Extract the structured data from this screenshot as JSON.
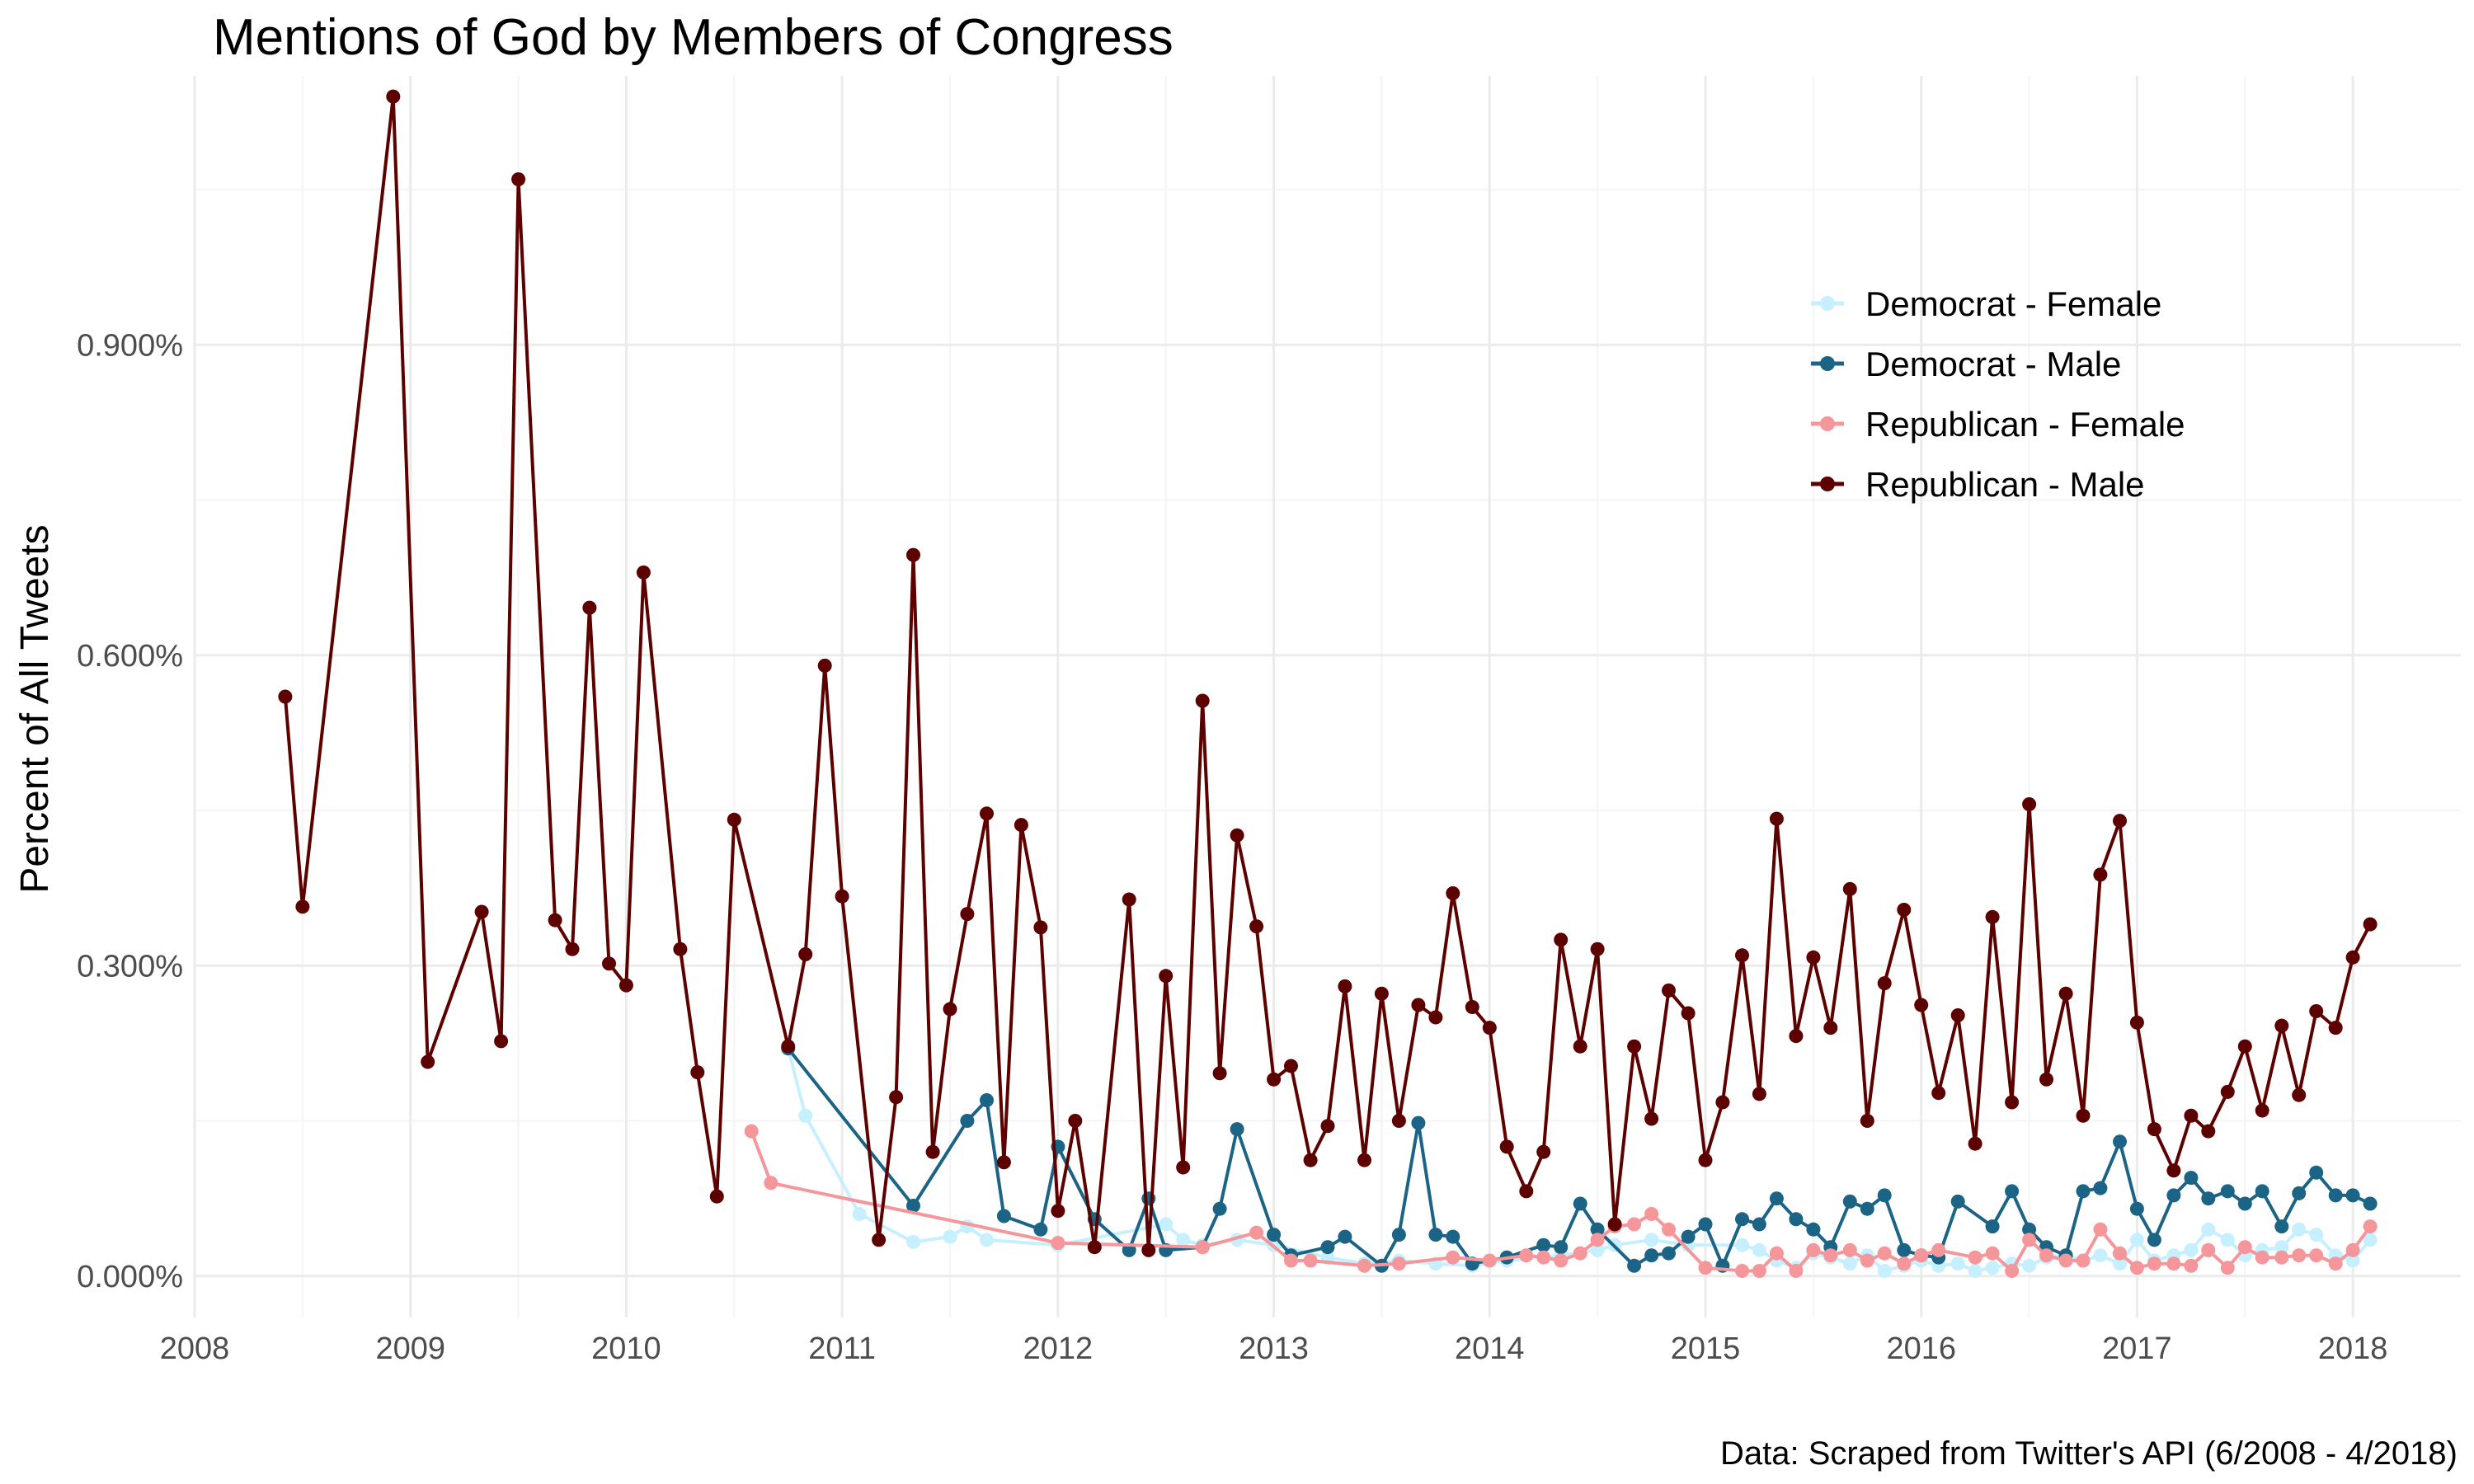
{
  "chart_data": {
    "type": "line",
    "title": "Mentions of God by Members of Congress",
    "caption": "Data: Scraped from Twitter's API (6/2008 - 4/2018)",
    "ylabel": "Percent of All Tweets",
    "xlabel": "",
    "xlim": [
      2008.0,
      2018.5
    ],
    "ylim": [
      -0.04,
      1.16
    ],
    "x_ticks": [
      2008,
      2009,
      2010,
      2011,
      2012,
      2013,
      2014,
      2015,
      2016,
      2017,
      2018
    ],
    "x_tick_labels": [
      "2008",
      "2009",
      "2010",
      "2011",
      "2012",
      "2013",
      "2014",
      "2015",
      "2016",
      "2017",
      "2018"
    ],
    "y_ticks": [
      0.0,
      0.3,
      0.6,
      0.9
    ],
    "y_tick_labels": [
      "0.000%",
      "0.300%",
      "0.600%",
      "0.900%"
    ],
    "grid": true,
    "legend_position": "top-right",
    "series": [
      {
        "name": "Democrat - Female",
        "color": "#c6efff",
        "points": [
          [
            2010.75,
            0.22
          ],
          [
            2010.83,
            0.155
          ],
          [
            2011.08,
            0.06
          ],
          [
            2011.33,
            0.033
          ],
          [
            2011.5,
            0.038
          ],
          [
            2011.58,
            0.048
          ],
          [
            2011.67,
            0.035
          ],
          [
            2012.0,
            0.03
          ],
          [
            2012.5,
            0.05
          ],
          [
            2012.58,
            0.035
          ],
          [
            2012.67,
            0.03
          ],
          [
            2012.83,
            0.035
          ],
          [
            2013.0,
            0.03
          ],
          [
            2013.25,
            0.018
          ],
          [
            2013.42,
            0.012
          ],
          [
            2013.58,
            0.015
          ],
          [
            2013.75,
            0.012
          ],
          [
            2013.92,
            0.01
          ],
          [
            2014.08,
            0.015
          ],
          [
            2014.33,
            0.02
          ],
          [
            2014.5,
            0.025
          ],
          [
            2014.58,
            0.03
          ],
          [
            2014.75,
            0.035
          ],
          [
            2014.92,
            0.03
          ],
          [
            2015.17,
            0.03
          ],
          [
            2015.25,
            0.025
          ],
          [
            2015.33,
            0.015
          ],
          [
            2015.42,
            0.008
          ],
          [
            2015.5,
            0.022
          ],
          [
            2015.58,
            0.018
          ],
          [
            2015.67,
            0.012
          ],
          [
            2015.75,
            0.02
          ],
          [
            2015.83,
            0.005
          ],
          [
            2015.92,
            0.01
          ],
          [
            2016.0,
            0.015
          ],
          [
            2016.08,
            0.01
          ],
          [
            2016.17,
            0.012
          ],
          [
            2016.25,
            0.005
          ],
          [
            2016.33,
            0.008
          ],
          [
            2016.42,
            0.012
          ],
          [
            2016.5,
            0.01
          ],
          [
            2016.58,
            0.018
          ],
          [
            2016.67,
            0.02
          ],
          [
            2016.75,
            0.015
          ],
          [
            2016.83,
            0.02
          ],
          [
            2016.92,
            0.012
          ],
          [
            2017.0,
            0.035
          ],
          [
            2017.08,
            0.015
          ],
          [
            2017.17,
            0.02
          ],
          [
            2017.25,
            0.025
          ],
          [
            2017.33,
            0.045
          ],
          [
            2017.42,
            0.035
          ],
          [
            2017.5,
            0.02
          ],
          [
            2017.58,
            0.025
          ],
          [
            2017.67,
            0.028
          ],
          [
            2017.75,
            0.045
          ],
          [
            2017.83,
            0.04
          ],
          [
            2017.92,
            0.02
          ],
          [
            2018.0,
            0.015
          ],
          [
            2018.08,
            0.035
          ]
        ]
      },
      {
        "name": "Democrat - Male",
        "color": "#1c6485",
        "points": [
          [
            2010.75,
            0.22
          ],
          [
            2011.33,
            0.068
          ],
          [
            2011.58,
            0.15
          ],
          [
            2011.67,
            0.17
          ],
          [
            2011.75,
            0.058
          ],
          [
            2011.92,
            0.045
          ],
          [
            2012.0,
            0.125
          ],
          [
            2012.17,
            0.055
          ],
          [
            2012.33,
            0.025
          ],
          [
            2012.42,
            0.075
          ],
          [
            2012.5,
            0.025
          ],
          [
            2012.67,
            0.028
          ],
          [
            2012.75,
            0.065
          ],
          [
            2012.83,
            0.142
          ],
          [
            2013.0,
            0.04
          ],
          [
            2013.08,
            0.02
          ],
          [
            2013.25,
            0.028
          ],
          [
            2013.33,
            0.038
          ],
          [
            2013.5,
            0.01
          ],
          [
            2013.58,
            0.04
          ],
          [
            2013.67,
            0.148
          ],
          [
            2013.75,
            0.04
          ],
          [
            2013.83,
            0.038
          ],
          [
            2013.92,
            0.012
          ],
          [
            2014.08,
            0.018
          ],
          [
            2014.25,
            0.03
          ],
          [
            2014.33,
            0.028
          ],
          [
            2014.42,
            0.07
          ],
          [
            2014.5,
            0.045
          ],
          [
            2014.67,
            0.01
          ],
          [
            2014.75,
            0.02
          ],
          [
            2014.83,
            0.022
          ],
          [
            2014.92,
            0.038
          ],
          [
            2015.0,
            0.05
          ],
          [
            2015.08,
            0.01
          ],
          [
            2015.17,
            0.055
          ],
          [
            2015.25,
            0.05
          ],
          [
            2015.33,
            0.075
          ],
          [
            2015.42,
            0.055
          ],
          [
            2015.5,
            0.045
          ],
          [
            2015.58,
            0.028
          ],
          [
            2015.67,
            0.072
          ],
          [
            2015.75,
            0.065
          ],
          [
            2015.83,
            0.078
          ],
          [
            2015.92,
            0.025
          ],
          [
            2016.0,
            0.02
          ],
          [
            2016.08,
            0.018
          ],
          [
            2016.17,
            0.072
          ],
          [
            2016.33,
            0.048
          ],
          [
            2016.42,
            0.082
          ],
          [
            2016.5,
            0.045
          ],
          [
            2016.58,
            0.028
          ],
          [
            2016.67,
            0.02
          ],
          [
            2016.75,
            0.082
          ],
          [
            2016.83,
            0.085
          ],
          [
            2016.92,
            0.13
          ],
          [
            2017.0,
            0.065
          ],
          [
            2017.08,
            0.035
          ],
          [
            2017.17,
            0.078
          ],
          [
            2017.25,
            0.095
          ],
          [
            2017.33,
            0.075
          ],
          [
            2017.42,
            0.082
          ],
          [
            2017.5,
            0.07
          ],
          [
            2017.58,
            0.082
          ],
          [
            2017.67,
            0.048
          ],
          [
            2017.75,
            0.08
          ],
          [
            2017.83,
            0.1
          ],
          [
            2017.92,
            0.078
          ],
          [
            2018.0,
            0.078
          ],
          [
            2018.08,
            0.07
          ]
        ]
      },
      {
        "name": "Republican - Female",
        "color": "#f4969a",
        "points": [
          [
            2010.58,
            0.14
          ],
          [
            2010.67,
            0.09
          ],
          [
            2012.0,
            0.032
          ],
          [
            2012.67,
            0.028
          ],
          [
            2012.92,
            0.042
          ],
          [
            2013.08,
            0.015
          ],
          [
            2013.17,
            0.015
          ],
          [
            2013.42,
            0.01
          ],
          [
            2013.58,
            0.012
          ],
          [
            2013.83,
            0.018
          ],
          [
            2014.0,
            0.015
          ],
          [
            2014.17,
            0.02
          ],
          [
            2014.25,
            0.018
          ],
          [
            2014.33,
            0.015
          ],
          [
            2014.42,
            0.022
          ],
          [
            2014.5,
            0.035
          ],
          [
            2014.58,
            0.048
          ],
          [
            2014.67,
            0.05
          ],
          [
            2014.75,
            0.06
          ],
          [
            2014.83,
            0.045
          ],
          [
            2015.0,
            0.008
          ],
          [
            2015.17,
            0.005
          ],
          [
            2015.25,
            0.005
          ],
          [
            2015.33,
            0.022
          ],
          [
            2015.42,
            0.005
          ],
          [
            2015.5,
            0.025
          ],
          [
            2015.58,
            0.02
          ],
          [
            2015.67,
            0.025
          ],
          [
            2015.75,
            0.015
          ],
          [
            2015.83,
            0.022
          ],
          [
            2015.92,
            0.012
          ],
          [
            2016.0,
            0.02
          ],
          [
            2016.08,
            0.025
          ],
          [
            2016.25,
            0.018
          ],
          [
            2016.33,
            0.022
          ],
          [
            2016.42,
            0.005
          ],
          [
            2016.5,
            0.035
          ],
          [
            2016.58,
            0.02
          ],
          [
            2016.67,
            0.015
          ],
          [
            2016.75,
            0.015
          ],
          [
            2016.83,
            0.045
          ],
          [
            2016.92,
            0.022
          ],
          [
            2017.0,
            0.008
          ],
          [
            2017.08,
            0.012
          ],
          [
            2017.17,
            0.012
          ],
          [
            2017.25,
            0.01
          ],
          [
            2017.33,
            0.025
          ],
          [
            2017.42,
            0.008
          ],
          [
            2017.5,
            0.028
          ],
          [
            2017.58,
            0.018
          ],
          [
            2017.67,
            0.018
          ],
          [
            2017.75,
            0.02
          ],
          [
            2017.83,
            0.02
          ],
          [
            2017.92,
            0.012
          ],
          [
            2018.0,
            0.025
          ],
          [
            2018.08,
            0.048
          ]
        ]
      },
      {
        "name": "Republican - Male",
        "color": "#5c0000",
        "points": [
          [
            2008.42,
            0.56
          ],
          [
            2008.5,
            0.357
          ],
          [
            2008.92,
            1.14
          ],
          [
            2009.08,
            0.207
          ],
          [
            2009.33,
            0.352
          ],
          [
            2009.42,
            0.227
          ],
          [
            2009.5,
            1.06
          ],
          [
            2009.67,
            0.344
          ],
          [
            2009.75,
            0.316
          ],
          [
            2009.83,
            0.646
          ],
          [
            2009.92,
            0.302
          ],
          [
            2010.0,
            0.281
          ],
          [
            2010.08,
            0.68
          ],
          [
            2010.25,
            0.316
          ],
          [
            2010.33,
            0.197
          ],
          [
            2010.42,
            0.077
          ],
          [
            2010.5,
            0.441
          ],
          [
            2010.75,
            0.222
          ],
          [
            2010.83,
            0.311
          ],
          [
            2010.92,
            0.59
          ],
          [
            2011.0,
            0.367
          ],
          [
            2011.17,
            0.035
          ],
          [
            2011.25,
            0.173
          ],
          [
            2011.33,
            0.697
          ],
          [
            2011.42,
            0.12
          ],
          [
            2011.5,
            0.258
          ],
          [
            2011.58,
            0.35
          ],
          [
            2011.67,
            0.447
          ],
          [
            2011.75,
            0.11
          ],
          [
            2011.83,
            0.436
          ],
          [
            2011.92,
            0.337
          ],
          [
            2012.0,
            0.063
          ],
          [
            2012.08,
            0.15
          ],
          [
            2012.17,
            0.028
          ],
          [
            2012.33,
            0.364
          ],
          [
            2012.42,
            0.025
          ],
          [
            2012.5,
            0.29
          ],
          [
            2012.58,
            0.105
          ],
          [
            2012.67,
            0.556
          ],
          [
            2012.75,
            0.196
          ],
          [
            2012.83,
            0.426
          ],
          [
            2012.92,
            0.338
          ],
          [
            2013.0,
            0.19
          ],
          [
            2013.08,
            0.203
          ],
          [
            2013.17,
            0.112
          ],
          [
            2013.25,
            0.145
          ],
          [
            2013.33,
            0.28
          ],
          [
            2013.42,
            0.112
          ],
          [
            2013.5,
            0.273
          ],
          [
            2013.58,
            0.15
          ],
          [
            2013.67,
            0.262
          ],
          [
            2013.75,
            0.25
          ],
          [
            2013.83,
            0.37
          ],
          [
            2013.92,
            0.26
          ],
          [
            2014.0,
            0.24
          ],
          [
            2014.08,
            0.125
          ],
          [
            2014.17,
            0.082
          ],
          [
            2014.25,
            0.12
          ],
          [
            2014.33,
            0.325
          ],
          [
            2014.42,
            0.222
          ],
          [
            2014.5,
            0.316
          ],
          [
            2014.58,
            0.05
          ],
          [
            2014.67,
            0.222
          ],
          [
            2014.75,
            0.152
          ],
          [
            2014.83,
            0.276
          ],
          [
            2014.92,
            0.254
          ],
          [
            2015.0,
            0.112
          ],
          [
            2015.08,
            0.168
          ],
          [
            2015.17,
            0.31
          ],
          [
            2015.25,
            0.176
          ],
          [
            2015.33,
            0.442
          ],
          [
            2015.42,
            0.232
          ],
          [
            2015.5,
            0.308
          ],
          [
            2015.58,
            0.24
          ],
          [
            2015.67,
            0.374
          ],
          [
            2015.75,
            0.15
          ],
          [
            2015.83,
            0.283
          ],
          [
            2015.92,
            0.354
          ],
          [
            2016.0,
            0.262
          ],
          [
            2016.08,
            0.177
          ],
          [
            2016.17,
            0.252
          ],
          [
            2016.25,
            0.128
          ],
          [
            2016.33,
            0.347
          ],
          [
            2016.42,
            0.168
          ],
          [
            2016.5,
            0.456
          ],
          [
            2016.58,
            0.19
          ],
          [
            2016.67,
            0.273
          ],
          [
            2016.75,
            0.155
          ],
          [
            2016.83,
            0.388
          ],
          [
            2016.92,
            0.44
          ],
          [
            2017.0,
            0.245
          ],
          [
            2017.08,
            0.142
          ],
          [
            2017.17,
            0.102
          ],
          [
            2017.25,
            0.155
          ],
          [
            2017.33,
            0.14
          ],
          [
            2017.42,
            0.178
          ],
          [
            2017.5,
            0.222
          ],
          [
            2017.58,
            0.16
          ],
          [
            2017.67,
            0.242
          ],
          [
            2017.75,
            0.175
          ],
          [
            2017.83,
            0.256
          ],
          [
            2017.92,
            0.24
          ],
          [
            2018.0,
            0.308
          ],
          [
            2018.08,
            0.34
          ]
        ]
      }
    ]
  }
}
